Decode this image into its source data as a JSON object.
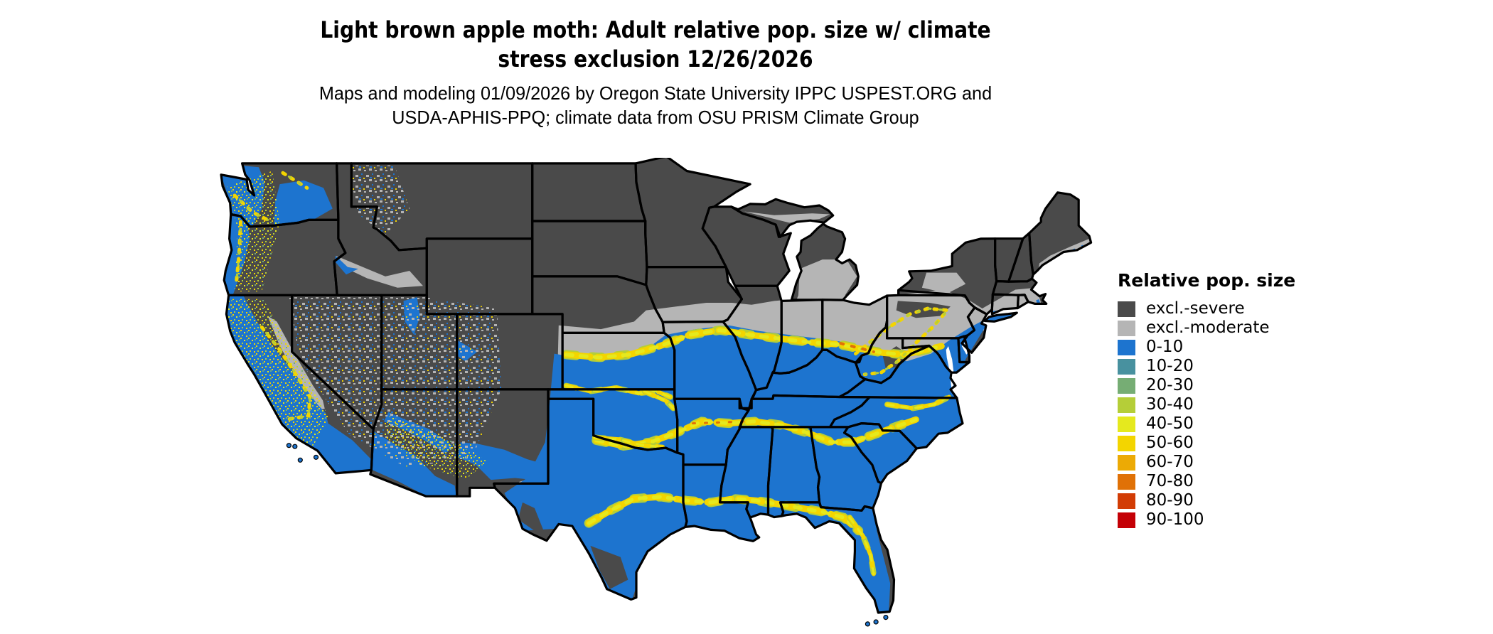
{
  "header": {
    "title_line1": "Light brown apple moth: Adult relative pop. size w/ climate",
    "title_line2": "stress exclusion 12/26/2026",
    "subtitle_line1": "Maps and modeling 01/09/2026 by Oregon State University IPPC USPEST.ORG and",
    "subtitle_line2": "USDA-APHIS-PPQ; climate data from OSU PRISM Climate Group"
  },
  "map": {
    "kind": "choropleth raster map",
    "area": "Contiguous United States",
    "border_color": "#000000",
    "background_color": "#ffffff"
  },
  "legend": {
    "title": "Relative pop. size",
    "items": [
      {
        "label": "excl.-severe",
        "color": "#4a4a4a"
      },
      {
        "label": "excl.-moderate",
        "color": "#b5b5b5"
      },
      {
        "label": "0-10",
        "color": "#1d74cf"
      },
      {
        "label": "10-20",
        "color": "#48919f"
      },
      {
        "label": "20-30",
        "color": "#76ad74"
      },
      {
        "label": "30-40",
        "color": "#b5ce38"
      },
      {
        "label": "40-50",
        "color": "#e5e91e"
      },
      {
        "label": "50-60",
        "color": "#f3d500"
      },
      {
        "label": "60-70",
        "color": "#ecaa05"
      },
      {
        "label": "70-80",
        "color": "#e07106"
      },
      {
        "label": "80-90",
        "color": "#d23c05"
      },
      {
        "label": "90-100",
        "color": "#c40006"
      }
    ]
  }
}
